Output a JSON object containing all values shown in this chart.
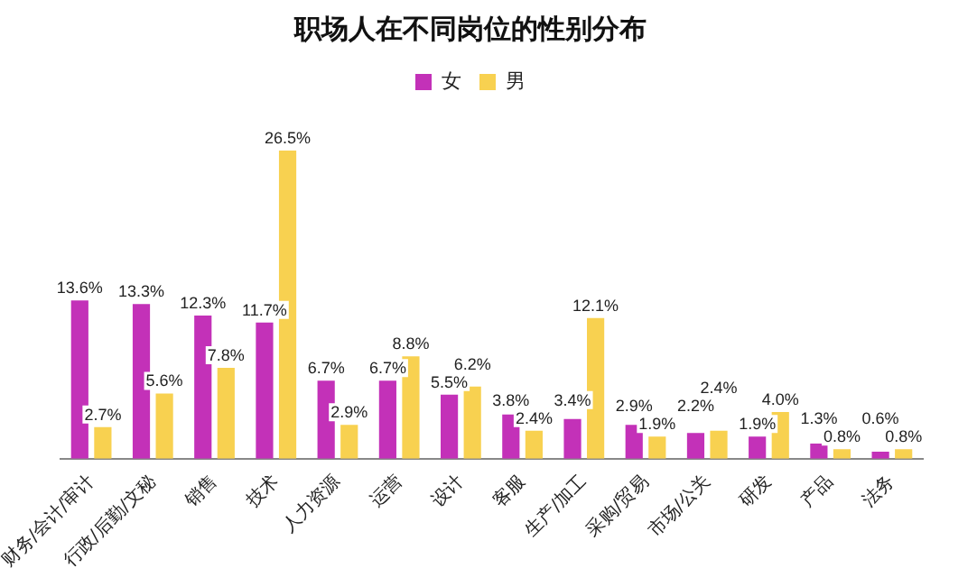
{
  "chart_data": {
    "type": "bar",
    "title": "职场人在不同岗位的性别分布",
    "categories": [
      "财务/会计/审计",
      "行政/后勤/文秘",
      "销售",
      "技术",
      "人力资源",
      "运营",
      "设计",
      "客服",
      "生产/加工",
      "采购/贸易",
      "市场/公关",
      "研发",
      "产品",
      "法务"
    ],
    "series": [
      {
        "name": "女",
        "color": "#c331b8",
        "values": [
          13.6,
          13.3,
          12.3,
          11.7,
          6.7,
          6.7,
          5.5,
          3.8,
          3.4,
          2.9,
          2.2,
          1.9,
          1.3,
          0.6
        ],
        "value_labels": [
          "13.6%",
          "13.3%",
          "12.3%",
          "11.7%",
          "6.7%",
          "6.7%",
          "5.5%",
          "3.8%",
          "3.4%",
          "2.9%",
          "2.2%",
          "1.9%",
          "1.3%",
          "0.6%"
        ]
      },
      {
        "name": "男",
        "color": "#f8d150",
        "values": [
          2.7,
          5.6,
          7.8,
          26.5,
          2.9,
          8.8,
          6.2,
          2.4,
          12.1,
          1.9,
          2.4,
          4.0,
          0.8,
          0.8
        ],
        "value_labels": [
          "2.7%",
          "5.6%",
          "7.8%",
          "26.5%",
          "2.9%",
          "8.8%",
          "6.2%",
          "2.4%",
          "12.1%",
          "1.9%",
          "2.4%",
          "4.0%",
          "0.8%",
          "0.8%"
        ]
      }
    ],
    "legend": "top",
    "grid": false
  }
}
